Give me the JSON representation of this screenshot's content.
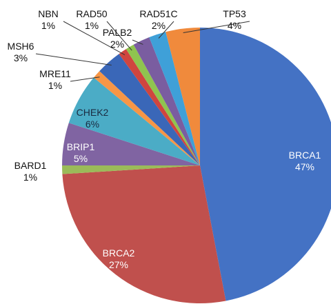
{
  "chart_data": {
    "type": "pie",
    "categories": [
      "BRCA1",
      "BRCA2",
      "BARD1",
      "BRIP1",
      "CHEK2",
      "MRE11",
      "MSH6",
      "NBN",
      "RAD50",
      "PALB2",
      "RAD51C",
      "TP53"
    ],
    "values": [
      47,
      27,
      1,
      5,
      6,
      1,
      3,
      1,
      1,
      2,
      2,
      4
    ],
    "value_labels": [
      "47%",
      "27%",
      "1%",
      "5%",
      "6%",
      "1%",
      "3%",
      "1%",
      "1%",
      "2%",
      "2%",
      "4%"
    ],
    "colors": [
      "#4472c4",
      "#c0504d",
      "#9bbb59",
      "#8064a2",
      "#4bacc6",
      "#f79646",
      "#3a67b8",
      "#d0453f",
      "#8fc44f",
      "#7a5da0",
      "#3fa0d8",
      "#f08a3c"
    ]
  }
}
